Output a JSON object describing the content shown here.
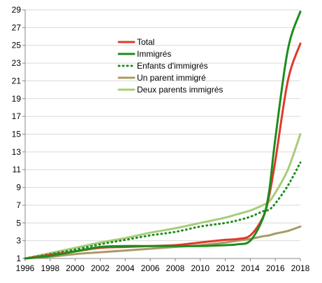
{
  "chart_data": {
    "type": "line",
    "title": "",
    "xlabel": "",
    "ylabel": "",
    "xlim": [
      1996,
      2018
    ],
    "ylim": [
      1,
      29
    ],
    "x_ticks": [
      "1996",
      "1998",
      "2000",
      "2002",
      "2004",
      "2006",
      "2008",
      "2010",
      "2012",
      "2014",
      "2016",
      "2018"
    ],
    "y_ticks": [
      "1",
      "3",
      "5",
      "7",
      "9",
      "11",
      "13",
      "15",
      "17",
      "19",
      "21",
      "23",
      "25",
      "27",
      "29"
    ],
    "grid": "horizontal",
    "legend_position": "top-center",
    "x": [
      1996,
      1998,
      2000,
      2002,
      2004,
      2006,
      2008,
      2010,
      2012,
      2013,
      2014,
      2015,
      2015.5,
      2016,
      2017,
      2018
    ],
    "series": [
      {
        "name": "Total",
        "color": "#e0392b",
        "style": "solid",
        "values": [
          1,
          1.4,
          1.8,
          2.2,
          2.3,
          2.4,
          2.5,
          2.8,
          3.1,
          3.2,
          3.6,
          5.6,
          8.0,
          12.0,
          21.0,
          25.2
        ]
      },
      {
        "name": "Immigrés",
        "color": "#1e8c1e",
        "style": "solid",
        "values": [
          1,
          1.3,
          1.8,
          2.3,
          2.4,
          2.4,
          2.4,
          2.4,
          2.5,
          2.6,
          3.0,
          5.5,
          8.5,
          14.5,
          24.5,
          28.8
        ]
      },
      {
        "name": "Enfants d'immigrés",
        "color": "#1e8c1e",
        "style": "dotted",
        "values": [
          1,
          1.5,
          2.0,
          2.6,
          3.1,
          3.6,
          4.0,
          4.6,
          5.0,
          5.3,
          5.7,
          6.3,
          6.5,
          7.2,
          9.2,
          11.8
        ]
      },
      {
        "name": "Un parent immigré",
        "color": "#a89a64",
        "style": "solid",
        "values": [
          1,
          1.2,
          1.5,
          1.7,
          1.9,
          2.1,
          2.3,
          2.5,
          2.8,
          3.0,
          3.2,
          3.5,
          3.6,
          3.8,
          4.1,
          4.6
        ]
      },
      {
        "name": "Deux parents immigrés",
        "color": "#a8cc7a",
        "style": "solid",
        "values": [
          1,
          1.6,
          2.2,
          2.8,
          3.3,
          3.9,
          4.4,
          5.0,
          5.6,
          6.0,
          6.4,
          7.0,
          7.4,
          8.4,
          11.0,
          15.0
        ]
      }
    ]
  }
}
